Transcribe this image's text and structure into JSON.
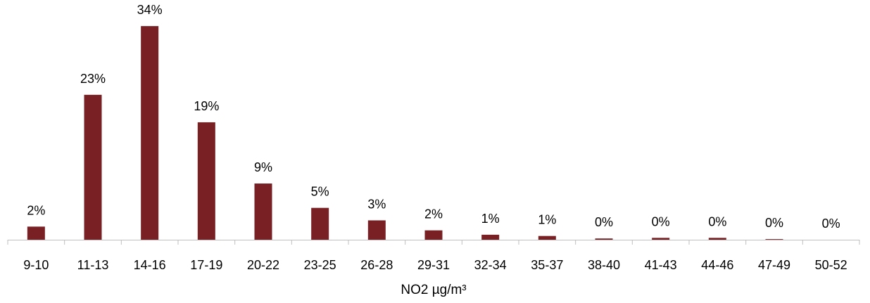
{
  "chart_data": {
    "type": "bar",
    "title": "",
    "xlabel": "NO2 µg/m³",
    "ylabel": "",
    "categories": [
      "9-10",
      "11-13",
      "14-16",
      "17-19",
      "20-22",
      "23-25",
      "26-28",
      "29-31",
      "32-34",
      "35-37",
      "38-40",
      "41-43",
      "44-46",
      "47-49",
      "50-52"
    ],
    "values": [
      2.1,
      23.2,
      34.2,
      18.8,
      9.0,
      5.1,
      3.1,
      1.5,
      0.8,
      0.6,
      0.2,
      0.3,
      0.3,
      0.1,
      0.0
    ],
    "data_labels": [
      "2%",
      "23%",
      "34%",
      "19%",
      "9%",
      "5%",
      "3%",
      "2%",
      "1%",
      "1%",
      "0%",
      "0%",
      "0%",
      "0%",
      "0%"
    ],
    "ylim": [
      0,
      35
    ],
    "grid": false,
    "legend": "none",
    "colors": {
      "bar": "#792024",
      "axis": "#bfbfbf",
      "text": "#000000"
    }
  }
}
